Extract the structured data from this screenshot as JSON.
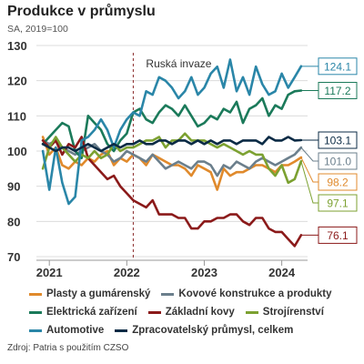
{
  "header": {
    "title": "Produkce v průmyslu",
    "subtitle": "SA, 2019=100"
  },
  "source": "Zdroj: Patria s použitím CZSO",
  "chart_data": {
    "type": "line",
    "title": "Produkce v průmyslu",
    "subtitle": "SA, 2019=100",
    "ylim": [
      70,
      130
    ],
    "yticks": [
      70,
      80,
      90,
      100,
      110,
      120,
      130
    ],
    "xlim": [
      "2020-11",
      "2024-05"
    ],
    "x_ticks": [
      {
        "label": "2021",
        "x": "2021-01"
      },
      {
        "label": "2022",
        "x": "2022-01"
      },
      {
        "label": "2023",
        "x": "2023-01"
      },
      {
        "label": "2024",
        "x": "2024-01"
      }
    ],
    "grid": "horizontal",
    "annotation": {
      "text": "Ruská invaze",
      "x": "2022-02",
      "style": "dashed vertical line"
    },
    "x": [
      "2020-12",
      "2021-01",
      "2021-02",
      "2021-03",
      "2021-04",
      "2021-05",
      "2021-06",
      "2021-07",
      "2021-08",
      "2021-09",
      "2021-10",
      "2021-11",
      "2021-12",
      "2022-01",
      "2022-02",
      "2022-03",
      "2022-04",
      "2022-05",
      "2022-06",
      "2022-07",
      "2022-08",
      "2022-09",
      "2022-10",
      "2022-11",
      "2022-12",
      "2023-01",
      "2023-02",
      "2023-03",
      "2023-04",
      "2023-05",
      "2023-06",
      "2023-07",
      "2023-08",
      "2023-09",
      "2023-10",
      "2023-11",
      "2023-12",
      "2024-01",
      "2024-02",
      "2024-03",
      "2024-04"
    ],
    "series": [
      {
        "name": "Plasty a gumárenský",
        "color": "#e08a2c",
        "end_label": "98.2",
        "values": [
          104,
          99,
          101,
          96,
          95,
          97,
          96,
          98,
          97,
          99,
          100,
          96,
          98,
          97,
          99,
          98,
          96,
          99,
          98,
          97,
          96,
          96,
          95,
          93,
          96,
          95,
          94,
          89,
          95,
          93,
          94,
          94,
          95,
          96,
          96,
          95,
          94,
          96,
          96,
          97,
          98.2
        ]
      },
      {
        "name": "Kovové konstrukce a produkty",
        "color": "#6b7f8c",
        "end_label": "101.0",
        "values": [
          103,
          102,
          103,
          101,
          100,
          99,
          100,
          101,
          102,
          100,
          99,
          97,
          98,
          100,
          99,
          98,
          97,
          99,
          97,
          95,
          96,
          97,
          96,
          95,
          97,
          97,
          96,
          93,
          96,
          95,
          97,
          96,
          95,
          97,
          98,
          97,
          96,
          97,
          98,
          99,
          101.0
        ]
      },
      {
        "name": "Elektrická zařízení",
        "color": "#1b7a5a",
        "end_label": "117.2",
        "values": [
          102,
          104,
          106,
          108,
          107,
          100,
          98,
          110,
          108,
          106,
          102,
          100,
          103,
          105,
          111,
          112,
          109,
          108,
          111,
          113,
          112,
          110,
          113,
          110,
          107,
          108,
          110,
          109,
          112,
          111,
          114,
          108,
          112,
          113,
          115,
          110,
          113,
          112,
          116,
          117,
          117.2
        ]
      },
      {
        "name": "Základní kovy",
        "color": "#8b1a1a",
        "end_label": "76.1",
        "values": [
          103,
          101,
          103,
          99,
          102,
          101,
          104,
          98,
          96,
          94,
          92,
          93,
          90,
          88,
          86,
          85,
          84,
          86,
          82,
          82,
          82,
          81,
          81,
          78,
          78,
          80,
          80,
          81,
          81,
          82,
          82,
          80,
          79,
          81,
          81,
          78,
          77,
          77,
          75,
          73,
          76.1
        ]
      },
      {
        "name": "Strojírenství",
        "color": "#7ca131",
        "end_label": "97.1",
        "values": [
          95,
          101,
          104,
          101,
          99,
          97,
          99,
          98,
          100,
          98,
          99,
          102,
          100,
          101,
          101,
          102,
          103,
          103,
          104,
          101,
          103,
          103,
          105,
          103,
          103,
          103,
          102,
          101,
          102,
          101,
          100,
          99,
          100,
          99,
          99,
          95,
          93,
          96,
          91,
          92,
          97.1
        ]
      },
      {
        "name": "Automotive",
        "color": "#2a86a8",
        "end_label": "124.1",
        "values": [
          100,
          89,
          101,
          91,
          85,
          87,
          103,
          104,
          106,
          109,
          106,
          101,
          106,
          109,
          111,
          110,
          117,
          116,
          121,
          120,
          118,
          115,
          117,
          121,
          116,
          118,
          122,
          124,
          118,
          126,
          117,
          121,
          116,
          124,
          119,
          116,
          117,
          122,
          118,
          121,
          124.1
        ]
      },
      {
        "name": "Zpracovatelský průmysl, celkem",
        "color": "#0b2b45",
        "end_label": "103.1",
        "values": [
          102,
          101,
          100,
          101,
          101,
          100,
          101,
          102,
          101,
          100,
          101,
          102,
          101,
          102,
          102,
          103,
          102,
          102,
          103,
          103,
          102,
          103,
          103,
          102,
          103,
          102,
          103,
          102,
          103,
          103,
          102,
          103,
          103,
          103,
          102,
          104,
          103,
          103,
          104,
          103,
          103.1
        ]
      }
    ]
  },
  "legend": {
    "rows": [
      [
        {
          "label": "Plasty a gumárenský",
          "color": "#e08a2c"
        },
        {
          "label": "Kovové konstrukce a produkty",
          "color": "#6b7f8c"
        }
      ],
      [
        {
          "label": "Elektrická zařízení",
          "color": "#1b7a5a"
        },
        {
          "label": "Základní kovy",
          "color": "#8b1a1a"
        },
        {
          "label": "Strojírenství",
          "color": "#7ca131"
        }
      ],
      [
        {
          "label": "Automotive",
          "color": "#2a86a8"
        },
        {
          "label": "Zpracovatelský průmysl, celkem",
          "color": "#0b2b45"
        }
      ]
    ]
  }
}
